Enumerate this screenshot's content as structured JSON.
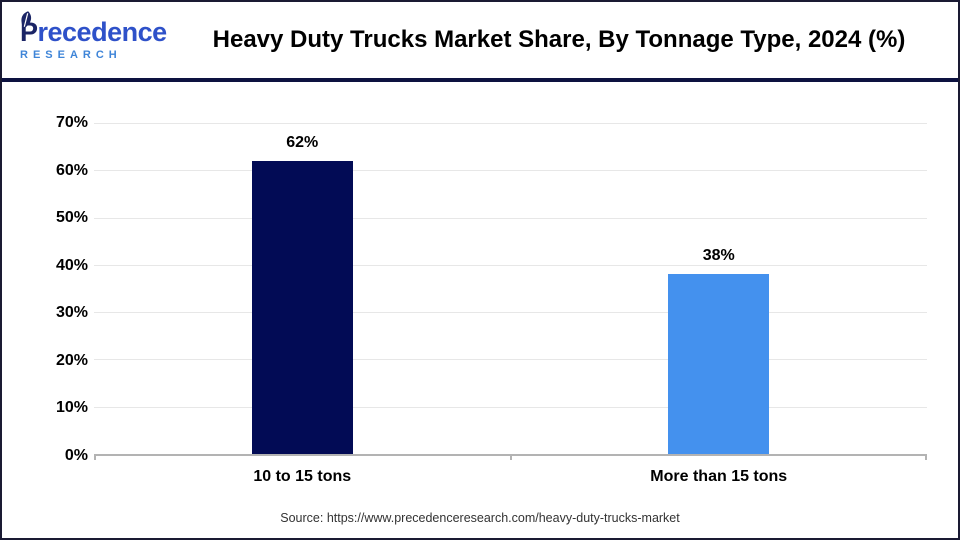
{
  "header": {
    "logo": {
      "brand": "Precedence",
      "sub": "RESEARCH"
    },
    "title": "Heavy Duty Trucks Market Share, By Tonnage Type, 2024 (%)"
  },
  "chart_data": {
    "type": "bar",
    "title": "Heavy Duty Trucks Market Share, By Tonnage Type, 2024 (%)",
    "categories": [
      "10 to 15 tons",
      "More than 15 tons"
    ],
    "values": [
      62,
      38
    ],
    "value_labels": [
      "62%",
      "38%"
    ],
    "bar_colors": [
      "#020b55",
      "#4491ee"
    ],
    "xlabel": "",
    "ylabel": "",
    "ylim": [
      0,
      70
    ],
    "ytick_step": 10,
    "ytick_labels": [
      "0%",
      "10%",
      "20%",
      "30%",
      "40%",
      "50%",
      "60%",
      "70%"
    ],
    "grid": true,
    "legend_position": "none"
  },
  "footer": {
    "source": "Source: https://www.precedenceresearch.com/heavy-duty-trucks-market"
  },
  "colors": {
    "bar_primary": "#020b55",
    "bar_secondary": "#4491ee",
    "header_rule": "#0d1240",
    "canvas_border": "#1a1a33",
    "gridline": "#e7e7e7",
    "axis_line": "#b3b3b3",
    "logo_brand": "#2e51c9",
    "logo_brand_initial": "#1b2566",
    "logo_sub": "#3f85d8"
  }
}
